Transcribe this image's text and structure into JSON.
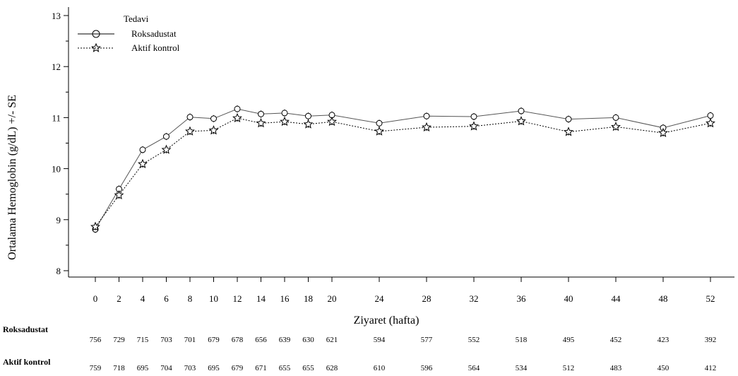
{
  "chart_data": {
    "type": "line",
    "xlabel": "Ziyaret (hafta)",
    "ylabel": "Ortalama Hemoglobin  (g/dL) +/- SE",
    "ylim": [
      7.85,
      13.1
    ],
    "yticks": [
      8,
      9,
      10,
      11,
      12,
      13
    ],
    "x_ticks": [
      0,
      2,
      4,
      6,
      8,
      10,
      12,
      14,
      16,
      18,
      20,
      24,
      28,
      32,
      36,
      40,
      44,
      48,
      52
    ],
    "grid": false,
    "legend": {
      "title": "Tedavi",
      "position": "top-left"
    },
    "series": [
      {
        "name": "Roksadustat",
        "marker": "circle",
        "line_style": "solid",
        "x": [
          0,
          2,
          4,
          6,
          8,
          10,
          12,
          14,
          16,
          18,
          20,
          24,
          28,
          32,
          36,
          40,
          44,
          48,
          52
        ],
        "values": [
          8.81,
          9.6,
          10.37,
          10.63,
          11.01,
          10.98,
          11.17,
          11.07,
          11.09,
          11.03,
          11.05,
          10.89,
          11.03,
          11.02,
          11.13,
          10.97,
          11.0,
          10.8,
          11.04
        ],
        "counts_label": "Roksadustat",
        "counts": [
          756,
          729,
          715,
          703,
          701,
          679,
          678,
          656,
          639,
          630,
          621,
          594,
          577,
          552,
          518,
          495,
          452,
          423,
          392
        ]
      },
      {
        "name": "Aktif kontrol",
        "marker": "star",
        "line_style": "dotted",
        "x": [
          0,
          2,
          4,
          6,
          8,
          10,
          12,
          14,
          16,
          18,
          20,
          24,
          28,
          32,
          36,
          40,
          44,
          48,
          52
        ],
        "values": [
          8.86,
          9.48,
          10.09,
          10.37,
          10.73,
          10.75,
          10.99,
          10.89,
          10.92,
          10.87,
          10.92,
          10.73,
          10.81,
          10.83,
          10.93,
          10.72,
          10.82,
          10.7,
          10.89
        ],
        "counts_label": "Aktif kontrol",
        "counts": [
          759,
          718,
          695,
          704,
          703,
          695,
          679,
          671,
          655,
          655,
          628,
          610,
          596,
          564,
          534,
          512,
          483,
          450,
          412
        ]
      }
    ]
  }
}
